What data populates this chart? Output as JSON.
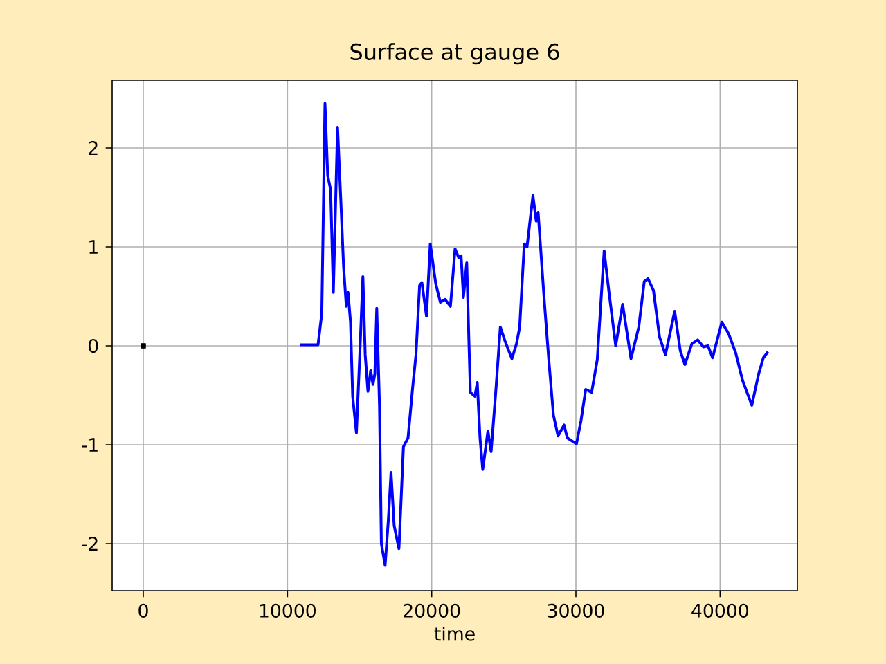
{
  "chart_data": {
    "type": "line",
    "title": "Surface at gauge 6",
    "xlabel": "time",
    "xlim": [
      -2160,
      45360
    ],
    "ylim": [
      -2.475,
      2.685
    ],
    "xticks": [
      0,
      10000,
      20000,
      30000,
      40000
    ],
    "yticks": [
      -2,
      -1,
      0,
      1,
      2
    ],
    "grid": true,
    "series": [
      {
        "color": "#0000ff",
        "x": [
          10850,
          12120,
          12380,
          12600,
          12790,
          12990,
          13180,
          13470,
          13690,
          13890,
          14080,
          14200,
          14370,
          14520,
          14780,
          15000,
          15230,
          15390,
          15580,
          15770,
          15930,
          16060,
          16190,
          16380,
          16510,
          16770,
          16990,
          17180,
          17400,
          17730,
          18040,
          18360,
          18680,
          18910,
          19160,
          19320,
          19640,
          19900,
          20280,
          20600,
          20920,
          21300,
          21620,
          21880,
          22040,
          22200,
          22430,
          22680,
          23000,
          23160,
          23350,
          23540,
          23900,
          24120,
          24440,
          24760,
          25080,
          25560,
          25880,
          26100,
          26420,
          26610,
          27020,
          27250,
          27380,
          27800,
          28120,
          28440,
          28760,
          29180,
          29400,
          29720,
          30040,
          30360,
          30680,
          31090,
          31480,
          31960,
          32280,
          32760,
          33240,
          33820,
          34360,
          34740,
          35000,
          35380,
          35800,
          36210,
          36850,
          37240,
          37560,
          38040,
          38450,
          38840,
          39160,
          39480,
          40120,
          40600,
          41080,
          41560,
          42200,
          42680,
          43000,
          43320
        ],
        "values": [
          0.01,
          0.01,
          0.33,
          2.45,
          1.72,
          1.58,
          0.54,
          2.21,
          1.5,
          0.8,
          0.4,
          0.54,
          0.24,
          -0.51,
          -0.88,
          -0.14,
          0.7,
          -0.09,
          -0.46,
          -0.25,
          -0.39,
          -0.28,
          0.38,
          -0.6,
          -2.0,
          -2.22,
          -1.77,
          -1.28,
          -1.82,
          -2.05,
          -1.02,
          -0.93,
          -0.42,
          -0.09,
          0.61,
          0.64,
          0.3,
          1.03,
          0.63,
          0.44,
          0.47,
          0.4,
          0.98,
          0.89,
          0.91,
          0.49,
          0.84,
          -0.47,
          -0.51,
          -0.37,
          -0.93,
          -1.25,
          -0.86,
          -1.07,
          -0.47,
          0.19,
          0.05,
          -0.13,
          0.02,
          0.19,
          1.03,
          1.0,
          1.52,
          1.26,
          1.35,
          0.47,
          -0.14,
          -0.7,
          -0.91,
          -0.8,
          -0.93,
          -0.96,
          -0.99,
          -0.75,
          -0.44,
          -0.47,
          -0.14,
          0.96,
          0.56,
          0.0,
          0.42,
          -0.13,
          0.19,
          0.65,
          0.68,
          0.56,
          0.09,
          -0.09,
          0.35,
          -0.05,
          -0.19,
          0.02,
          0.06,
          -0.01,
          0.0,
          -0.12,
          0.24,
          0.12,
          -0.07,
          -0.35,
          -0.6,
          -0.28,
          -0.12,
          -0.06
        ]
      },
      {
        "type": "scatter",
        "marker": "square",
        "color": "#000000",
        "x": [
          0
        ],
        "values": [
          0
        ]
      }
    ]
  }
}
